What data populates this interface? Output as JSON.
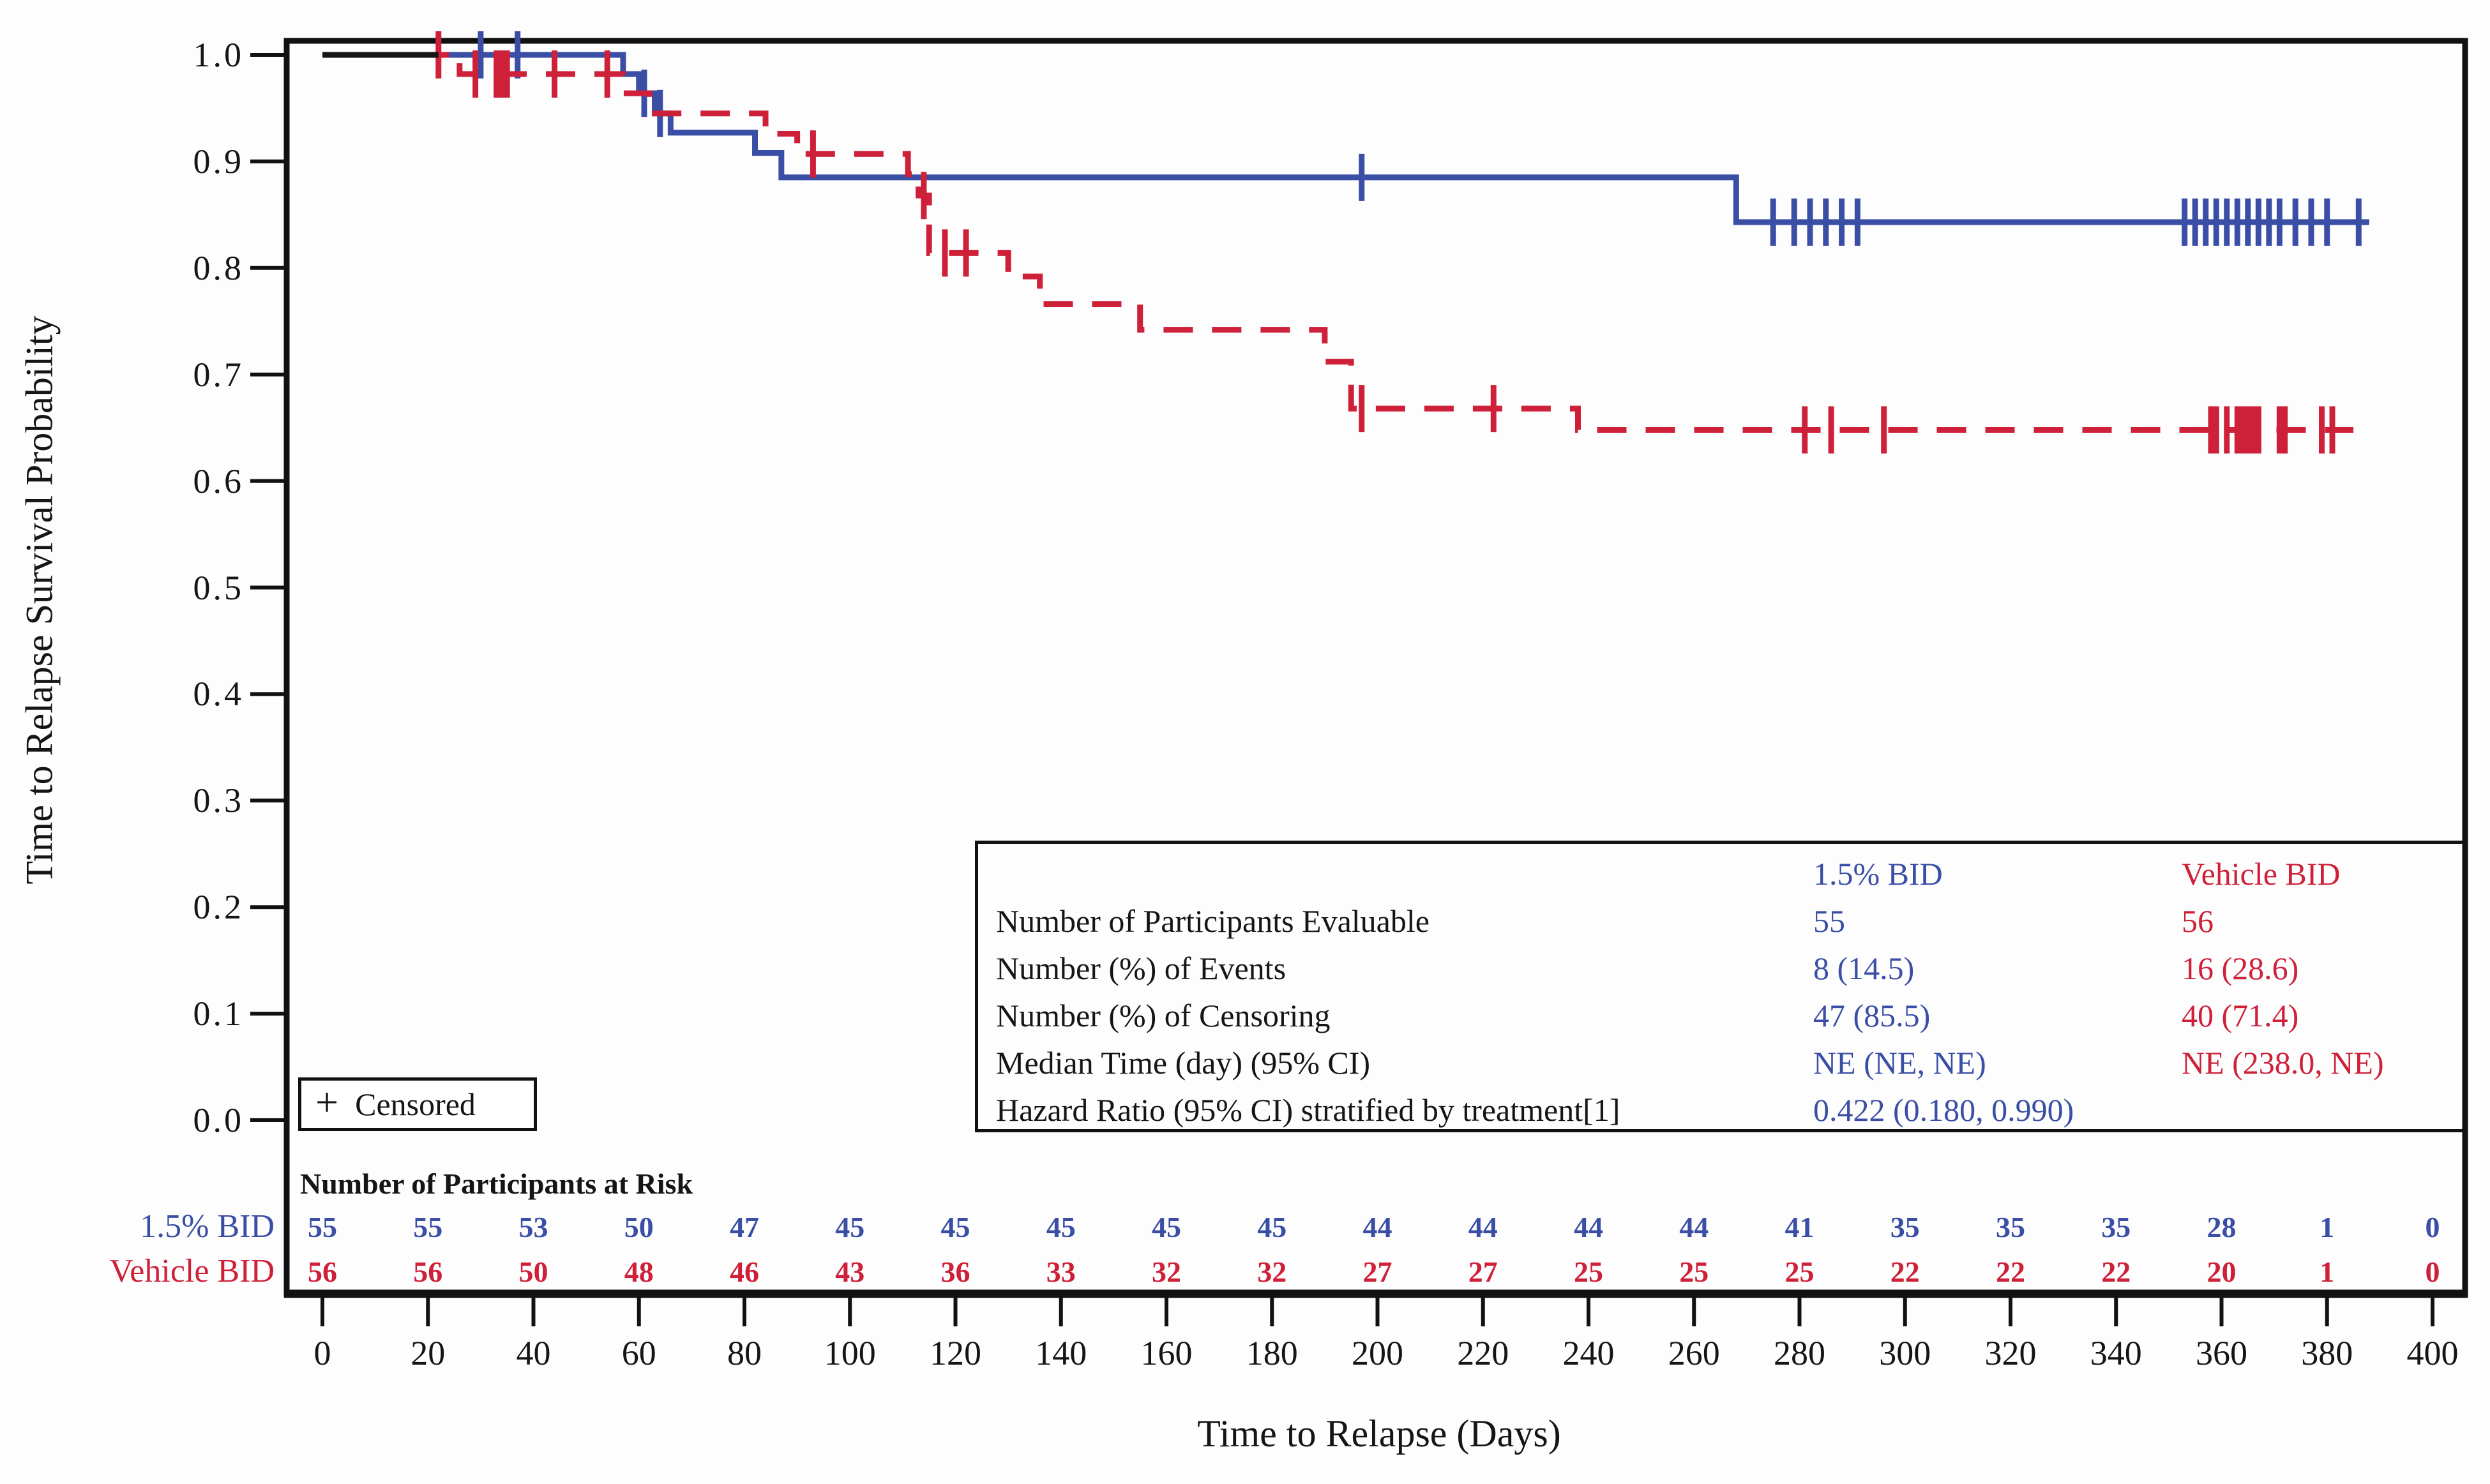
{
  "axes": {
    "x_title": "Time to Relapse (Days)",
    "y_title": "Time to Relapse Survival Probability",
    "x_ticks": [
      0,
      20,
      40,
      60,
      80,
      100,
      120,
      140,
      160,
      180,
      200,
      220,
      240,
      260,
      280,
      300,
      320,
      340,
      360,
      380,
      400
    ],
    "y_tick_labels": [
      "1.0",
      "0.9",
      "0.8",
      "0.7",
      "0.6",
      "0.5",
      "0.4",
      "0.3",
      "0.2",
      "0.1",
      "0.0"
    ],
    "x_range": [
      0,
      400
    ],
    "y_range": [
      0.0,
      1.0
    ]
  },
  "chart_data": {
    "type": "line",
    "variant": "kaplan-meier-step",
    "title": "",
    "xlabel": "Time to Relapse (Days)",
    "ylabel": "Time to Relapse Survival Probability",
    "xlim": [
      0,
      400
    ],
    "ylim": [
      0.0,
      1.0
    ],
    "grid": false,
    "series": [
      {
        "name": "1.5% BID",
        "color": "#3a4ea5",
        "line_style": "solid",
        "points": [
          [
            0,
            1
          ],
          [
            57,
            0.982
          ],
          [
            60,
            0.964
          ],
          [
            63,
            0.945
          ],
          [
            66,
            0.927
          ],
          [
            82,
            0.908
          ],
          [
            87,
            0.885
          ],
          [
            268,
            0.843
          ]
        ],
        "end_day": 388,
        "censor_marks": [
          [
            30,
            1
          ],
          [
            37,
            1
          ],
          [
            61,
            0.964
          ],
          [
            64,
            0.945
          ],
          [
            197,
            0.885
          ],
          [
            275,
            0.843
          ],
          [
            279,
            0.843
          ],
          [
            282,
            0.843
          ],
          [
            285,
            0.843
          ],
          [
            288,
            0.843
          ],
          [
            291,
            0.843
          ],
          [
            353,
            0.843
          ],
          [
            355,
            0.843
          ],
          [
            357,
            0.843
          ],
          [
            359,
            0.843
          ],
          [
            361,
            0.843
          ],
          [
            363,
            0.843
          ],
          [
            365,
            0.843
          ],
          [
            367,
            0.843
          ],
          [
            369,
            0.843
          ],
          [
            371,
            0.843
          ],
          [
            374,
            0.843
          ],
          [
            377,
            0.843
          ],
          [
            380,
            0.843
          ],
          [
            386,
            0.843
          ]
        ]
      },
      {
        "name": "Vehicle BID",
        "color": "#ce2038",
        "line_style": "dashed",
        "points": [
          [
            0,
            1
          ],
          [
            26,
            0.982
          ],
          [
            57,
            0.964
          ],
          [
            62,
            0.945
          ],
          [
            84,
            0.926
          ],
          [
            90,
            0.907
          ],
          [
            111,
            0.888
          ],
          [
            113,
            0.868
          ],
          [
            115,
            0.814
          ],
          [
            130,
            0.792
          ],
          [
            136,
            0.766
          ],
          [
            155,
            0.742
          ],
          [
            190,
            0.712
          ],
          [
            195,
            0.668
          ],
          [
            238,
            0.648
          ]
        ],
        "end_day": 385,
        "censor_marks": [
          [
            22,
            1
          ],
          [
            29,
            0.982
          ],
          [
            33,
            0.982
          ],
          [
            34,
            0.982
          ],
          [
            35,
            0.982
          ],
          [
            44,
            0.982
          ],
          [
            54,
            0.982
          ],
          [
            93,
            0.907
          ],
          [
            114,
            0.868
          ],
          [
            118,
            0.814
          ],
          [
            122,
            0.814
          ],
          [
            197,
            0.668
          ],
          [
            222,
            0.668
          ],
          [
            281,
            0.648
          ],
          [
            286,
            0.648
          ],
          [
            296,
            0.648
          ],
          [
            358,
            0.648
          ],
          [
            359,
            0.648
          ],
          [
            361,
            0.648
          ],
          [
            363,
            0.648
          ],
          [
            364,
            0.648
          ],
          [
            365,
            0.648
          ],
          [
            366,
            0.648
          ],
          [
            367,
            0.648
          ],
          [
            371,
            0.648
          ],
          [
            372,
            0.648
          ],
          [
            379,
            0.648
          ],
          [
            381,
            0.648
          ]
        ]
      },
      {
        "name": "overlap-start",
        "color": "#151515",
        "line_style": "solid",
        "points": [
          [
            0,
            1
          ]
        ],
        "end_day": 22,
        "censor_marks": []
      }
    ],
    "legend_position": "bottom-left-inside"
  },
  "censored_legend": {
    "symbol": "+",
    "label": "Censored"
  },
  "stats_table": {
    "headers": [
      "1.5% BID",
      "Vehicle BID"
    ],
    "rows": [
      {
        "label": "Number of Participants Evaluable",
        "values": [
          "55",
          "56"
        ]
      },
      {
        "label": "Number (%) of Events",
        "values": [
          "8 (14.5)",
          "16 (28.6)"
        ]
      },
      {
        "label": "Number (%) of Censoring",
        "values": [
          "47 (85.5)",
          "40 (71.4)"
        ]
      },
      {
        "label": "Median Time (day) (95% CI)",
        "values": [
          "NE (NE, NE)",
          "NE (238.0, NE)"
        ]
      },
      {
        "label": "Hazard Ratio (95% CI) stratified by treatment[1]",
        "values": [
          "0.422 (0.180, 0.990)",
          ""
        ]
      }
    ]
  },
  "at_risk": {
    "title": "Number of Participants at Risk",
    "times": [
      0,
      20,
      40,
      60,
      80,
      100,
      120,
      140,
      160,
      180,
      200,
      220,
      240,
      260,
      280,
      300,
      320,
      340,
      360,
      380,
      400
    ],
    "rows": [
      {
        "label": "1.5% BID",
        "color": "#3a4ea5",
        "values": [
          55,
          55,
          53,
          50,
          47,
          45,
          45,
          45,
          45,
          45,
          44,
          44,
          44,
          44,
          41,
          35,
          35,
          35,
          28,
          1,
          0
        ]
      },
      {
        "label": "Vehicle BID",
        "color": "#ce2038",
        "values": [
          56,
          56,
          50,
          48,
          46,
          43,
          36,
          33,
          32,
          32,
          27,
          27,
          25,
          25,
          25,
          22,
          22,
          22,
          20,
          1,
          0
        ]
      }
    ]
  }
}
